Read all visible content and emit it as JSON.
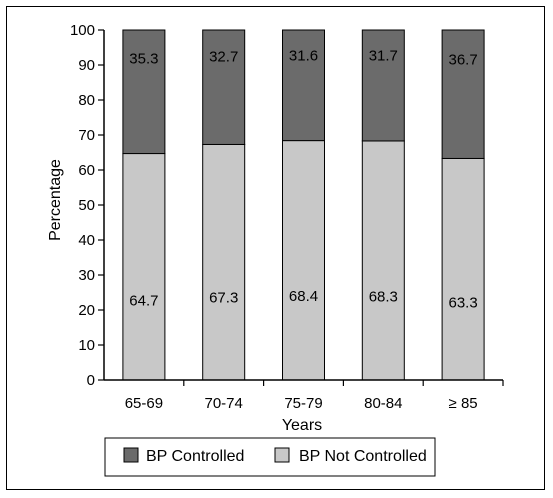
{
  "chart_data": {
    "type": "bar",
    "stacked": true,
    "categories": [
      "65-69",
      "70-74",
      "75-79",
      "80-84",
      "≥ 85"
    ],
    "series": [
      {
        "name": "BP Not Controlled",
        "values": [
          64.7,
          67.3,
          68.4,
          68.3,
          63.3
        ],
        "color": "#c8c8c8"
      },
      {
        "name": "BP Controlled",
        "values": [
          35.3,
          32.7,
          31.6,
          31.7,
          36.7
        ],
        "color": "#6b6b6b"
      }
    ],
    "data_labels": {
      "BP Not Controlled": [
        "64.7",
        "67.3",
        "68.4",
        "68.3",
        "63.3"
      ],
      "BP Controlled": [
        "35.3",
        "32.7",
        "31.6",
        "31.7",
        "36.7"
      ]
    },
    "title": "",
    "xlabel": "Years",
    "ylabel": "Percentage",
    "ylim": [
      0,
      100
    ],
    "yticks": [
      0,
      10,
      20,
      30,
      40,
      50,
      60,
      70,
      80,
      90,
      100
    ],
    "grid": false,
    "legend": {
      "placement": "bottom",
      "entries": [
        {
          "name": "BP Controlled",
          "color": "#6b6b6b"
        },
        {
          "name": "BP Not Controlled",
          "color": "#c8c8c8"
        }
      ]
    }
  }
}
